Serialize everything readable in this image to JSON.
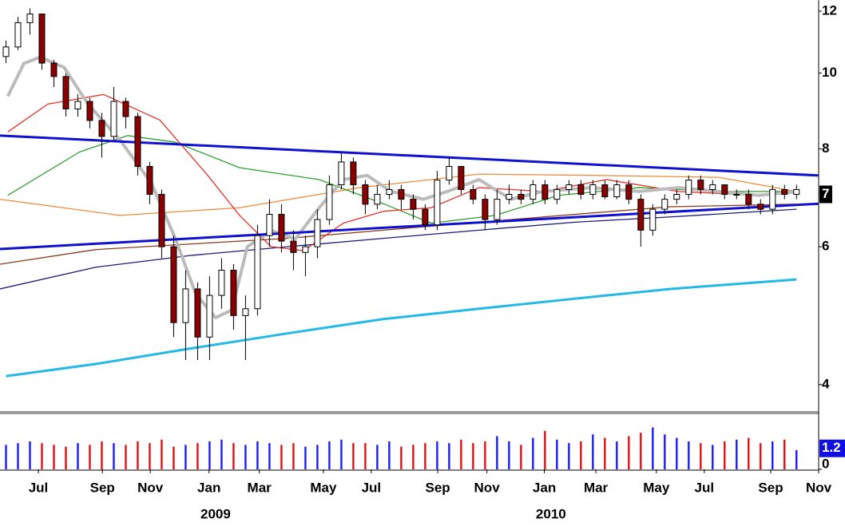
{
  "chart_data": {
    "type": "candlestick",
    "log": true,
    "xlim": [
      0,
      136.7
    ],
    "ylim": [
      3.7,
      12.4
    ],
    "yticks": [
      4,
      6,
      8,
      10,
      12
    ],
    "last_price": 7,
    "xticks": [
      {
        "value": 6.4,
        "label": "Jul"
      },
      {
        "value": 17.1,
        "label": "Sep"
      },
      {
        "value": 25.1,
        "label": "Nov"
      },
      {
        "value": 34.9,
        "label": "Jan"
      },
      {
        "value": 43.3,
        "label": "Mar"
      },
      {
        "value": 54,
        "label": "May"
      },
      {
        "value": 62,
        "label": "Jul"
      },
      {
        "value": 73.1,
        "label": "Sep"
      },
      {
        "value": 81.3,
        "label": "Nov"
      },
      {
        "value": 90.9,
        "label": "Jan"
      },
      {
        "value": 99.5,
        "label": "Mar"
      },
      {
        "value": 109.6,
        "label": "May"
      },
      {
        "value": 117.6,
        "label": "Jul"
      },
      {
        "value": 128.7,
        "label": "Sep"
      },
      {
        "value": 136.7,
        "label": "Nov"
      }
    ],
    "xticks_year": [
      {
        "value": 36,
        "label": "2009"
      },
      {
        "value": 92,
        "label": "2010"
      }
    ],
    "up_color": "#ffffff",
    "down_color": "#8b0000",
    "candles": {
      "x": [
        1,
        3,
        5,
        7,
        9,
        11,
        13,
        15,
        17,
        19,
        21,
        23,
        25,
        27,
        29,
        31,
        33,
        35,
        37,
        39,
        41,
        43,
        45,
        47,
        49,
        51,
        53,
        55,
        57,
        59,
        61,
        63,
        65,
        67,
        69,
        71,
        73,
        75,
        77,
        79,
        81,
        83,
        85,
        87,
        89,
        91,
        93,
        95,
        97,
        99,
        101,
        103,
        105,
        107,
        109,
        111,
        113,
        115,
        117,
        119,
        121,
        123,
        125,
        127,
        129,
        131,
        133
      ],
      "open": [
        10.5,
        10.8,
        11.6,
        11.9,
        10.3,
        9.9,
        9.0,
        9.2,
        8.7,
        8.3,
        9.2,
        8.8,
        7.6,
        7.0,
        6.0,
        4.8,
        5.3,
        4.6,
        5.2,
        5.6,
        4.9,
        5.0,
        6.2,
        6.6,
        6.1,
        5.9,
        6.0,
        6.5,
        7.2,
        7.7,
        7.2,
        6.8,
        7.0,
        7.1,
        6.9,
        6.7,
        6.4,
        7.3,
        7.6,
        7.1,
        6.9,
        6.5,
        6.9,
        7.0,
        6.9,
        7.2,
        6.9,
        7.1,
        7.2,
        7.0,
        7.2,
        6.95,
        7.2,
        6.9,
        6.3,
        6.7,
        6.9,
        7.0,
        7.3,
        7.1,
        7.2,
        7.0,
        7.0,
        6.8,
        6.7,
        7.1,
        7.0
      ],
      "high": [
        11.0,
        11.8,
        12.1,
        11.9,
        10.4,
        10.0,
        9.4,
        9.3,
        8.9,
        9.6,
        9.3,
        8.9,
        7.7,
        7.1,
        6.2,
        5.6,
        5.4,
        5.5,
        5.8,
        5.7,
        5.2,
        6.4,
        6.9,
        6.8,
        6.3,
        6.2,
        6.7,
        7.4,
        7.9,
        7.8,
        7.3,
        7.2,
        7.3,
        7.2,
        7.0,
        6.8,
        7.5,
        7.8,
        7.6,
        7.2,
        7.0,
        7.1,
        7.2,
        7.1,
        7.3,
        7.3,
        7.2,
        7.3,
        7.3,
        7.3,
        7.3,
        7.3,
        7.3,
        7.0,
        6.8,
        7.0,
        7.1,
        7.4,
        7.4,
        7.3,
        7.2,
        7.1,
        7.1,
        6.9,
        7.2,
        7.2,
        7.2
      ],
      "low": [
        10.3,
        10.7,
        11.2,
        10.1,
        9.6,
        8.8,
        8.8,
        8.5,
        7.8,
        8.2,
        8.5,
        7.4,
        6.8,
        5.8,
        4.6,
        4.3,
        4.3,
        4.3,
        5.0,
        4.7,
        4.3,
        4.9,
        6.0,
        5.9,
        5.6,
        5.5,
        5.8,
        6.4,
        7.1,
        7.0,
        6.6,
        6.7,
        6.9,
        6.7,
        6.5,
        6.3,
        6.3,
        7.2,
        7.0,
        6.8,
        6.3,
        6.4,
        6.8,
        6.8,
        6.8,
        6.8,
        6.8,
        7.0,
        6.9,
        6.9,
        6.9,
        6.9,
        6.8,
        6.0,
        6.2,
        6.6,
        6.8,
        6.9,
        7.0,
        7.0,
        6.9,
        6.9,
        6.7,
        6.6,
        6.6,
        6.9,
        6.9
      ],
      "close": [
        10.8,
        11.6,
        11.9,
        10.3,
        9.9,
        9.0,
        9.2,
        8.7,
        8.3,
        9.2,
        8.8,
        7.6,
        7.0,
        6.0,
        4.8,
        5.3,
        4.6,
        5.2,
        5.6,
        4.9,
        5.0,
        6.2,
        6.6,
        6.1,
        5.9,
        6.0,
        6.5,
        7.2,
        7.7,
        7.2,
        6.8,
        7.0,
        7.1,
        6.9,
        6.7,
        6.4,
        7.3,
        7.6,
        7.1,
        6.9,
        6.5,
        6.9,
        7.0,
        6.9,
        7.2,
        6.9,
        7.1,
        7.2,
        7.0,
        7.2,
        6.95,
        7.2,
        6.9,
        6.3,
        6.7,
        6.9,
        7.0,
        7.3,
        7.1,
        7.2,
        7.0,
        7.0,
        6.8,
        6.7,
        7.1,
        7.0,
        7.1
      ]
    },
    "volume": {
      "ylim": [
        0,
        2.88
      ],
      "yticks": [
        0,
        1.2
      ],
      "up_color": "#1a1aff",
      "down_color": "#e01010",
      "values": [
        1.4,
        1.5,
        1.6,
        1.5,
        1.4,
        1.3,
        1.5,
        1.4,
        1.6,
        1.5,
        1.4,
        1.6,
        1.5,
        1.7,
        1.3,
        1.4,
        1.5,
        1.6,
        1.7,
        1.5,
        1.4,
        1.6,
        1.5,
        1.4,
        1.5,
        1.3,
        1.4,
        1.6,
        1.7,
        1.5,
        1.5,
        1.4,
        1.6,
        1.3,
        1.4,
        1.5,
        1.6,
        1.5,
        1.7,
        1.5,
        1.6,
        1.9,
        1.6,
        1.4,
        1.8,
        2.2,
        1.7,
        1.5,
        1.6,
        2.0,
        1.8,
        1.6,
        1.9,
        2.1,
        2.4,
        2.0,
        1.8,
        1.6,
        1.5,
        1.4,
        1.6,
        1.7,
        1.8,
        1.5,
        1.6,
        1.7,
        1.1
      ]
    },
    "series": [
      {
        "color": "#22b8e8",
        "width": 3,
        "x": [
          1,
          16,
          32,
          48,
          64,
          80,
          96,
          112,
          133
        ],
        "values": [
          4.1,
          4.25,
          4.45,
          4.65,
          4.85,
          5.0,
          5.15,
          5.3,
          5.45
        ]
      },
      {
        "color": "#1a1a7a",
        "width": 1.3,
        "x": [
          0,
          16,
          32,
          48,
          64,
          80,
          96,
          112,
          133
        ],
        "values": [
          5.3,
          5.65,
          5.85,
          6.0,
          6.15,
          6.3,
          6.45,
          6.55,
          6.7
        ]
      },
      {
        "color": "#8b3a1a",
        "width": 1.3,
        "x": [
          0,
          16,
          32,
          48,
          64,
          80,
          96,
          112,
          133
        ],
        "values": [
          5.7,
          5.95,
          6.05,
          6.15,
          6.3,
          6.45,
          6.6,
          6.75,
          6.8
        ]
      },
      {
        "color": "#f08a3c",
        "width": 1.3,
        "x": [
          0,
          20,
          40,
          60,
          80,
          100,
          120,
          133
        ],
        "values": [
          6.9,
          6.58,
          6.73,
          7.14,
          7.43,
          7.4,
          7.36,
          7.06
        ]
      },
      {
        "color": "#2e9e2e",
        "width": 1.3,
        "x": [
          1.3,
          13.3,
          21.3,
          29.3,
          40,
          53.3,
          64,
          72,
          82.7,
          93.3,
          106.7,
          120,
          133.3
        ],
        "values": [
          6.98,
          7.93,
          8.32,
          8.16,
          7.57,
          7.31,
          6.81,
          6.43,
          6.58,
          6.98,
          7.14,
          7.06,
          7.06
        ]
      },
      {
        "color": "#e8302a",
        "width": 1.3,
        "x": [
          1.3,
          8,
          17.3,
          26.7,
          34.7,
          40,
          45.3,
          50.7,
          57.3,
          64,
          72,
          80,
          90.7,
          101.3,
          113.3,
          126.7,
          133.3
        ],
        "values": [
          8.41,
          9.13,
          9.39,
          8.71,
          7.4,
          6.58,
          6.0,
          5.93,
          6.43,
          6.66,
          6.73,
          7.14,
          7.06,
          7.31,
          7.06,
          6.98,
          7.06
        ]
      },
      {
        "color": "#bbbbbb",
        "width": 4,
        "x": [
          1.3,
          4,
          6.7,
          10.7,
          14.7,
          20,
          25.3,
          29.3,
          32.7,
          36,
          38.7,
          41.3,
          45.3,
          49.3,
          53.3,
          57.3,
          61.3,
          65.3,
          70.7,
          74.7,
          80,
          85.3,
          90.7,
          98.7,
          106.7,
          113.3,
          120,
          126.7,
          133.3
        ],
        "values": [
          9.34,
          10.29,
          10.48,
          10.17,
          9.13,
          8.22,
          7.23,
          6.14,
          5.22,
          4.87,
          4.98,
          6.0,
          6.29,
          6.14,
          6.73,
          7.31,
          7.4,
          7.06,
          6.9,
          7.06,
          7.31,
          6.9,
          7.06,
          7.14,
          7.06,
          7.14,
          7.06,
          6.98,
          7.06
        ]
      }
    ],
    "trendlines": [
      {
        "color": "#1010d0",
        "x": [
          0,
          136.7
        ],
        "values": [
          8.32,
          7.4
        ]
      },
      {
        "color": "#1010d0",
        "x": [
          0,
          136.7
        ],
        "values": [
          5.96,
          6.81
        ]
      }
    ]
  }
}
